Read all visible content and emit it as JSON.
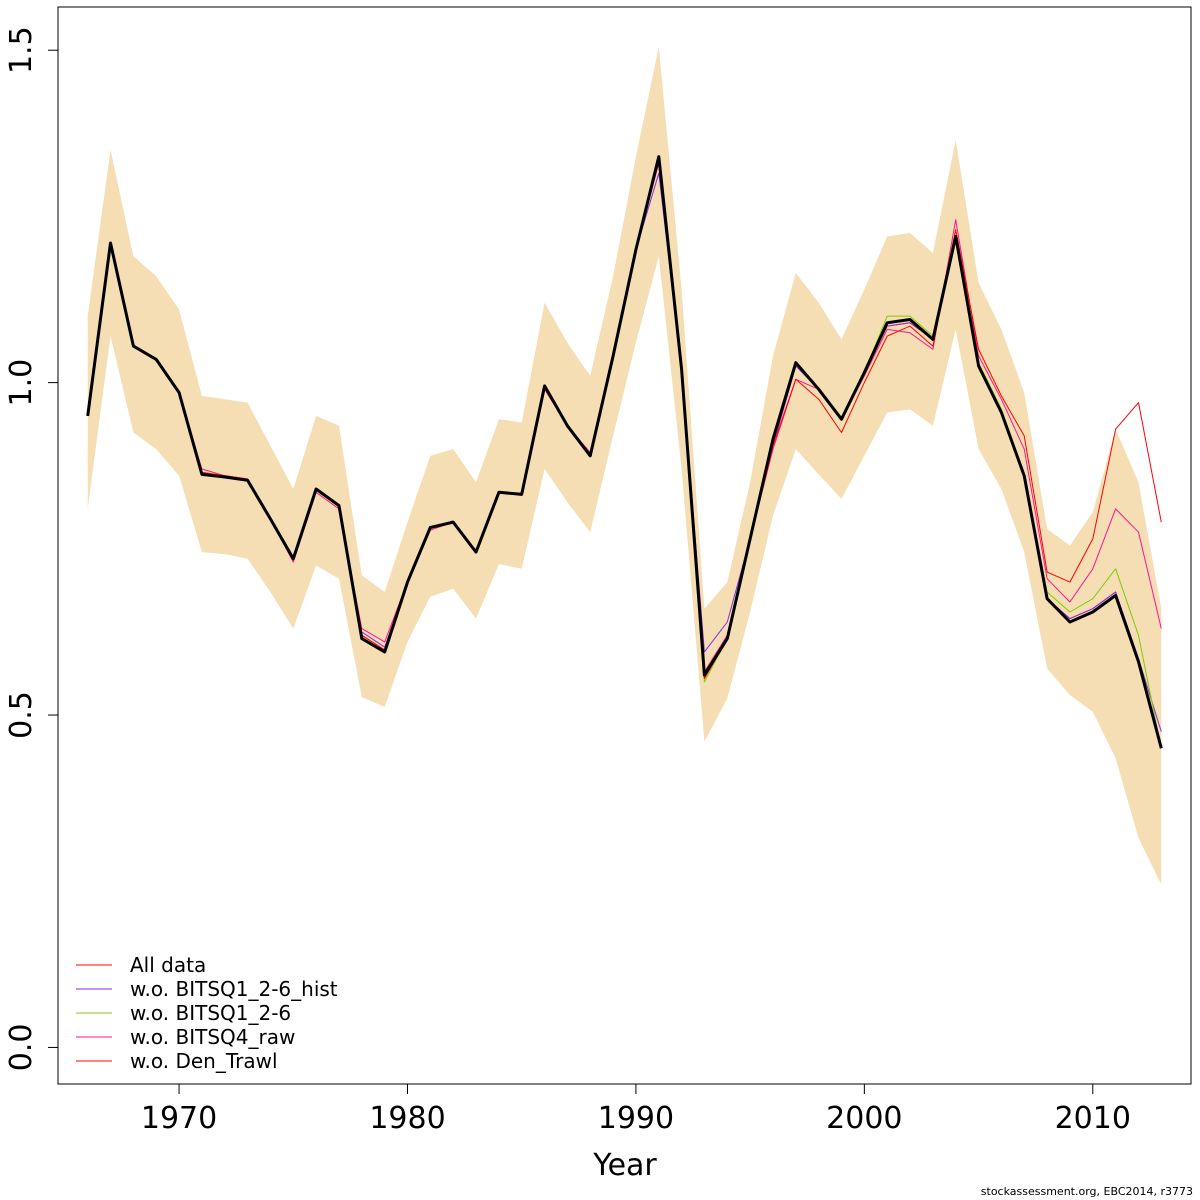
{
  "chart_data": {
    "type": "line",
    "title": "",
    "xlabel": "Year",
    "ylabel": "",
    "xlim": [
      1964.7,
      2014.3
    ],
    "ylim": [
      -0.055,
      1.565
    ],
    "xticks": [
      "1970",
      "1980",
      "1990",
      "2000",
      "2010"
    ],
    "yticks": [
      "0.0",
      "0.5",
      "1.0",
      "1.5"
    ],
    "grid": false,
    "legend_position": "bottom-left",
    "band": {
      "color": "#F5DEB3",
      "x": [
        1966,
        1967,
        1968,
        1969,
        1970,
        1971,
        1972,
        1973,
        1974,
        1975,
        1976,
        1977,
        1978,
        1979,
        1980,
        1981,
        1982,
        1983,
        1984,
        1985,
        1986,
        1987,
        1988,
        1989,
        1990,
        1991,
        1992,
        1993,
        1994,
        1995,
        1996,
        1997,
        1998,
        1999,
        2000,
        2001,
        2002,
        2003,
        2004,
        2005,
        2006,
        2007,
        2008,
        2009,
        2010,
        2011,
        2012,
        2013
      ],
      "upper": [
        1.1,
        1.35,
        1.19,
        1.16,
        1.11,
        0.98,
        0.975,
        0.97,
        0.905,
        0.84,
        0.95,
        0.935,
        0.71,
        0.685,
        0.79,
        0.89,
        0.9,
        0.85,
        0.945,
        0.94,
        1.12,
        1.06,
        1.01,
        1.16,
        1.34,
        1.505,
        1.14,
        0.66,
        0.7,
        0.85,
        1.04,
        1.165,
        1.12,
        1.065,
        1.14,
        1.22,
        1.225,
        1.195,
        1.365,
        1.15,
        1.08,
        0.985,
        0.78,
        0.755,
        0.805,
        0.93,
        0.85,
        0.66
      ],
      "lower": [
        0.81,
        1.07,
        0.925,
        0.9,
        0.86,
        0.745,
        0.742,
        0.735,
        0.685,
        0.63,
        0.725,
        0.705,
        0.527,
        0.512,
        0.61,
        0.678,
        0.69,
        0.645,
        0.727,
        0.72,
        0.87,
        0.82,
        0.775,
        0.92,
        1.06,
        1.19,
        0.87,
        0.46,
        0.525,
        0.655,
        0.8,
        0.9,
        0.862,
        0.825,
        0.89,
        0.955,
        0.96,
        0.935,
        1.08,
        0.9,
        0.84,
        0.745,
        0.57,
        0.53,
        0.505,
        0.435,
        0.315,
        0.245
      ]
    },
    "x": [
      1966,
      1967,
      1968,
      1969,
      1970,
      1971,
      1972,
      1973,
      1974,
      1975,
      1976,
      1977,
      1978,
      1979,
      1980,
      1981,
      1982,
      1983,
      1984,
      1985,
      1986,
      1987,
      1988,
      1989,
      1990,
      1991,
      1992,
      1993,
      1994,
      1995,
      1996,
      1997,
      1998,
      1999,
      2000,
      2001,
      2002,
      2003,
      2004,
      2005,
      2006,
      2007,
      2008,
      2009,
      2010,
      2011,
      2012,
      2013
    ],
    "series": [
      {
        "name": "All data",
        "color": "#FF0000",
        "width": 1,
        "values": [
          0.95,
          1.21,
          1.055,
          1.035,
          0.985,
          0.865,
          0.86,
          0.855,
          0.795,
          0.735,
          0.84,
          0.815,
          0.62,
          0.598,
          0.7,
          0.782,
          0.79,
          0.745,
          0.835,
          0.832,
          0.995,
          0.935,
          0.89,
          1.04,
          1.2,
          1.34,
          1.02,
          0.555,
          0.615,
          0.765,
          0.915,
          1.03,
          0.99,
          0.945,
          1.015,
          1.085,
          1.09,
          1.065,
          1.22,
          1.025,
          0.955,
          0.86,
          0.675,
          0.645,
          0.66,
          0.685,
          0.58,
          0.455
        ]
      },
      {
        "name": "w.o. BITSQ1_2-6_hist",
        "color": "#8A2BE2",
        "width": 1,
        "values": [
          0.95,
          1.21,
          1.055,
          1.035,
          0.985,
          0.865,
          0.86,
          0.855,
          0.795,
          0.735,
          0.84,
          0.815,
          0.625,
          0.602,
          0.7,
          0.782,
          0.792,
          0.745,
          0.835,
          0.832,
          0.995,
          0.935,
          0.89,
          1.04,
          1.2,
          1.315,
          1.02,
          0.595,
          0.64,
          0.765,
          0.905,
          1.025,
          0.99,
          0.945,
          1.015,
          1.085,
          1.09,
          1.065,
          1.22,
          1.025,
          0.955,
          0.86,
          0.675,
          0.645,
          0.66,
          0.685,
          0.585,
          0.475
        ]
      },
      {
        "name": "w.o. BITSQ1_2-6",
        "color": "#7FCC00",
        "width": 1,
        "values": [
          0.95,
          1.21,
          1.055,
          1.035,
          0.985,
          0.865,
          0.86,
          0.855,
          0.795,
          0.735,
          0.84,
          0.815,
          0.62,
          0.598,
          0.7,
          0.782,
          0.79,
          0.745,
          0.835,
          0.832,
          0.995,
          0.935,
          0.89,
          1.04,
          1.2,
          1.34,
          1.02,
          0.55,
          0.615,
          0.765,
          0.915,
          1.03,
          0.99,
          0.945,
          1.015,
          1.1,
          1.1,
          1.07,
          1.23,
          1.03,
          0.96,
          0.86,
          0.685,
          0.655,
          0.675,
          0.72,
          0.62,
          0.45
        ]
      },
      {
        "name": "w.o. BITSQ4_raw",
        "color": "#FF1493",
        "width": 1,
        "values": [
          0.95,
          1.205,
          1.055,
          1.035,
          0.985,
          0.87,
          0.86,
          0.855,
          0.795,
          0.73,
          0.835,
          0.81,
          0.63,
          0.61,
          0.7,
          0.778,
          0.79,
          0.745,
          0.835,
          0.83,
          0.99,
          0.935,
          0.895,
          1.04,
          1.2,
          1.33,
          1.02,
          0.565,
          0.62,
          0.765,
          0.9,
          1.005,
          0.99,
          0.945,
          1.01,
          1.08,
          1.075,
          1.05,
          1.245,
          1.04,
          0.975,
          0.9,
          0.705,
          0.67,
          0.72,
          0.81,
          0.775,
          0.63
        ]
      },
      {
        "name": "w.o. Den_Trawl",
        "color": "#FF0000",
        "width": 1,
        "values": [
          0.95,
          1.21,
          1.055,
          1.035,
          0.985,
          0.865,
          0.86,
          0.855,
          0.795,
          0.735,
          0.84,
          0.815,
          0.62,
          0.598,
          0.7,
          0.782,
          0.79,
          0.745,
          0.835,
          0.832,
          0.995,
          0.935,
          0.89,
          1.04,
          1.2,
          1.34,
          1.02,
          0.555,
          0.615,
          0.765,
          0.905,
          1.005,
          0.975,
          0.925,
          1.0,
          1.07,
          1.085,
          1.055,
          1.23,
          1.05,
          0.98,
          0.92,
          0.715,
          0.7,
          0.765,
          0.93,
          0.97,
          0.79
        ]
      },
      {
        "name": "",
        "color": "#000000",
        "width": 3,
        "values": [
          0.95,
          1.21,
          1.055,
          1.035,
          0.985,
          0.862,
          0.858,
          0.853,
          0.795,
          0.735,
          0.84,
          0.815,
          0.615,
          0.595,
          0.7,
          0.782,
          0.79,
          0.745,
          0.835,
          0.832,
          0.995,
          0.935,
          0.89,
          1.04,
          1.2,
          1.34,
          1.02,
          0.56,
          0.615,
          0.765,
          0.915,
          1.03,
          0.99,
          0.945,
          1.015,
          1.09,
          1.095,
          1.065,
          1.22,
          1.025,
          0.955,
          0.86,
          0.675,
          0.64,
          0.655,
          0.68,
          0.58,
          0.45
        ]
      }
    ],
    "credit": "stockassessment.org, EBC2014, r3773"
  }
}
